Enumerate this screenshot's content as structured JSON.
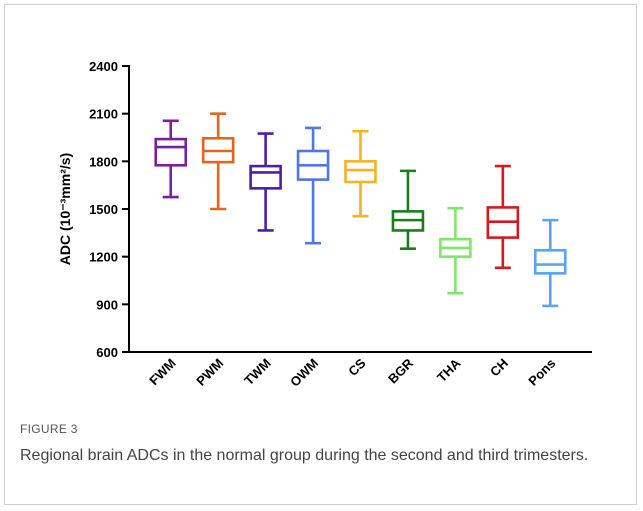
{
  "chart_data": {
    "type": "box",
    "y_label": "ADC (10⁻³mm²/s)",
    "ylim": [
      600,
      2400
    ],
    "yticks": [
      600,
      900,
      1200,
      1500,
      1800,
      2100,
      2400
    ],
    "boxes": [
      {
        "name": "FWM",
        "color": "#7b1fa2",
        "min": 1575,
        "q1": 1775,
        "median": 1890,
        "q3": 1940,
        "max": 2055
      },
      {
        "name": "PWM",
        "color": "#e2661c",
        "min": 1500,
        "q1": 1795,
        "median": 1865,
        "q3": 1945,
        "max": 2100
      },
      {
        "name": "TWM",
        "color": "#4a1fa6",
        "min": 1365,
        "q1": 1630,
        "median": 1730,
        "q3": 1770,
        "max": 1975
      },
      {
        "name": "OWM",
        "color": "#4f78e6",
        "min": 1285,
        "q1": 1685,
        "median": 1775,
        "q3": 1865,
        "max": 2010
      },
      {
        "name": "CS",
        "color": "#f4b41c",
        "min": 1455,
        "q1": 1670,
        "median": 1745,
        "q3": 1800,
        "max": 1990
      },
      {
        "name": "BGR",
        "color": "#1c7c1c",
        "min": 1250,
        "q1": 1365,
        "median": 1430,
        "q3": 1485,
        "max": 1740
      },
      {
        "name": "THA",
        "color": "#7fe86b",
        "min": 970,
        "q1": 1200,
        "median": 1255,
        "q3": 1310,
        "max": 1505
      },
      {
        "name": "CH",
        "color": "#d21c1c",
        "min": 1130,
        "q1": 1320,
        "median": 1420,
        "q3": 1510,
        "max": 1770
      },
      {
        "name": "Pons",
        "color": "#5aa4f0",
        "min": 890,
        "q1": 1095,
        "median": 1150,
        "q3": 1240,
        "max": 1430
      }
    ]
  },
  "figure": {
    "label": "FIGURE 3",
    "caption": "Regional brain ADCs in the normal group during the second and third trimesters."
  }
}
